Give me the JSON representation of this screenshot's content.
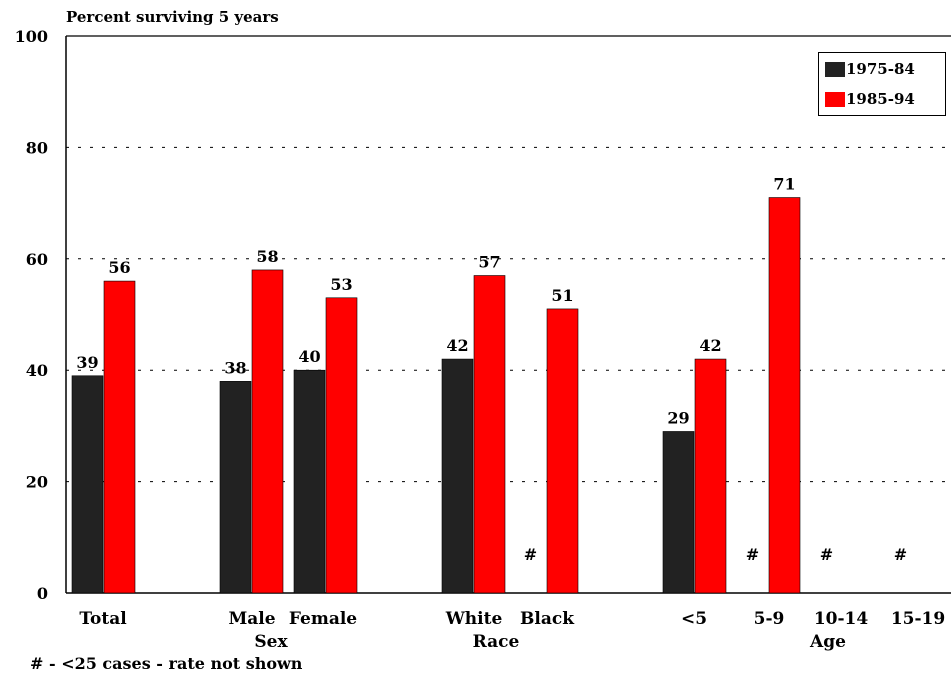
{
  "chart_data": {
    "type": "bar",
    "title": "Percent surviving 5 years",
    "ylim": [
      0,
      100
    ],
    "yticks": [
      0,
      20,
      40,
      60,
      80,
      100
    ],
    "grid": true,
    "legend_position": "top-right",
    "series": [
      {
        "name": "1975-84",
        "color": "#222222"
      },
      {
        "name": "1985-94",
        "color": "#ff0000"
      }
    ],
    "categories": [
      {
        "label": "Total",
        "values": [
          39,
          56
        ],
        "labels": [
          "39",
          "56"
        ]
      },
      {
        "label": "Male",
        "values": [
          38,
          58
        ],
        "labels": [
          "38",
          "58"
        ]
      },
      {
        "label": "Female",
        "values": [
          40,
          53
        ],
        "labels": [
          "40",
          "53"
        ]
      },
      {
        "label": "White",
        "values": [
          42,
          57
        ],
        "labels": [
          "42",
          "57"
        ]
      },
      {
        "label": "Black",
        "values": [
          null,
          51
        ],
        "labels": [
          "#",
          "51"
        ]
      },
      {
        "label": "<5",
        "values": [
          29,
          42
        ],
        "labels": [
          "29",
          "42"
        ]
      },
      {
        "label": "5-9",
        "values": [
          null,
          71
        ],
        "labels": [
          "#",
          "71"
        ]
      },
      {
        "label": "10-14",
        "values": [
          null,
          null
        ],
        "labels": [
          "#",
          ""
        ]
      },
      {
        "label": "15-19",
        "values": [
          null,
          null
        ],
        "labels": [
          "#",
          ""
        ]
      }
    ],
    "group_labels": [
      "Sex",
      "Race",
      "Age"
    ],
    "footnote": "# - <25 cases - rate not shown"
  }
}
